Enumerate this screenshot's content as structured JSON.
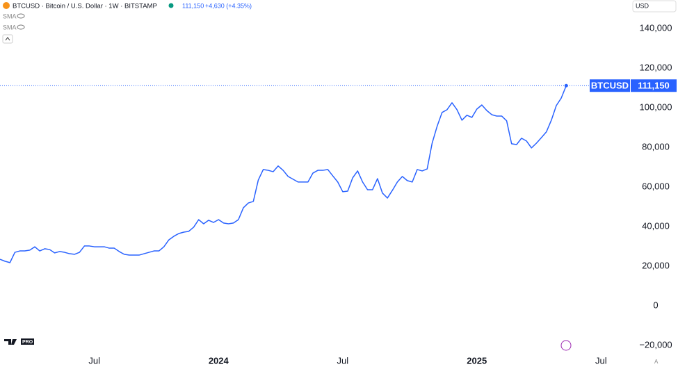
{
  "chart_data": {
    "type": "line",
    "header": {
      "symbol": "BTCUSD · Bitcoin / U.S. Dollar · 1W · BITSTAMP",
      "price": "111,150",
      "change": "+4,630 (+4.35%)"
    },
    "indicators": [
      "SMA",
      "SMA"
    ],
    "currency": "USD",
    "logo": "PRO",
    "categories": [
      null,
      null,
      null,
      null,
      null,
      null,
      null,
      null,
      null,
      null,
      null,
      null,
      null,
      null,
      null,
      null,
      null,
      null,
      null,
      "Jul",
      null,
      null,
      null,
      null,
      null,
      null,
      null,
      null,
      null,
      null,
      null,
      null,
      null,
      null,
      null,
      null,
      null,
      null,
      null,
      null,
      null,
      null,
      null,
      null,
      "2024",
      null,
      null,
      null,
      null,
      null,
      null,
      null,
      null,
      null,
      null,
      null,
      null,
      null,
      null,
      null,
      null,
      null,
      null,
      null,
      null,
      null,
      null,
      null,
      null,
      "Jul",
      null,
      null,
      null,
      null,
      null,
      null,
      null,
      null,
      null,
      null,
      null,
      null,
      null,
      null,
      null,
      null,
      null,
      null,
      null,
      null,
      null,
      null,
      null,
      null,
      null,
      null,
      "2025",
      null,
      null,
      null,
      null,
      null,
      null,
      null,
      null,
      null,
      null,
      null,
      null,
      null,
      null,
      null,
      null,
      null,
      null,
      null,
      null,
      null,
      null,
      null,
      null,
      "Jul",
      null,
      null,
      null,
      null
    ],
    "series": [
      {
        "name": "BTCUSD",
        "color": "#2962ff",
        "values": [
          23500,
          22500,
          21800,
          27000,
          27700,
          27700,
          28100,
          29800,
          27700,
          28800,
          28400,
          26700,
          27400,
          27000,
          26300,
          26000,
          27000,
          30200,
          30200,
          29800,
          29800,
          29800,
          29100,
          29100,
          27400,
          26000,
          25600,
          25600,
          25600,
          26300,
          27000,
          27700,
          27700,
          29800,
          33300,
          35100,
          36500,
          37200,
          37600,
          39700,
          43500,
          41400,
          43200,
          42100,
          43500,
          41800,
          41400,
          41800,
          43500,
          49500,
          51900,
          52700,
          63500,
          68800,
          68400,
          67700,
          70600,
          68400,
          65300,
          63900,
          62500,
          62500,
          62500,
          67000,
          68400,
          68400,
          68800,
          65600,
          62500,
          57600,
          57900,
          64600,
          68100,
          62500,
          58600,
          58600,
          64200,
          56900,
          54400,
          58300,
          62500,
          65300,
          63200,
          62500,
          68800,
          68100,
          69100,
          82100,
          90600,
          97600,
          99000,
          102500,
          99000,
          93700,
          96200,
          95100,
          99300,
          101400,
          98600,
          96500,
          95800,
          95800,
          93400,
          81800,
          81400,
          84600,
          83200,
          79700,
          82100,
          84900,
          87800,
          93700,
          101100,
          104900,
          111150,
          null,
          null,
          null,
          null,
          null,
          null,
          null,
          null,
          null,
          null,
          null
        ]
      }
    ],
    "last_price": {
      "name": "BTCUSD",
      "value": 111150,
      "label": "111,150"
    },
    "ylim": [
      -23860,
      154386
    ],
    "yticks": [
      {
        "value": -20000,
        "label": "−20,000"
      },
      0,
      {
        "value": 20000,
        "label": "20,000"
      },
      {
        "value": 40000,
        "label": "40,000"
      },
      {
        "value": 60000,
        "label": "60,000"
      },
      {
        "value": 80000,
        "label": "80,000"
      },
      {
        "value": 100000,
        "label": "100,000"
      },
      {
        "value": 120000,
        "label": "120,000"
      },
      {
        "value": 140000,
        "label": "140,000"
      }
    ],
    "grid": false
  }
}
